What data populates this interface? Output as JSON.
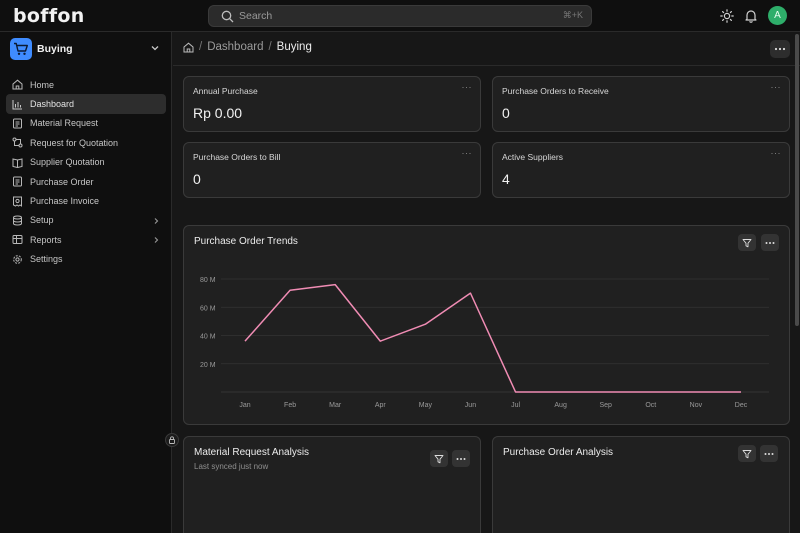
{
  "brand": {
    "logo": "boffon"
  },
  "search": {
    "placeholder": "Search",
    "shortcut": "⌘+K"
  },
  "user": {
    "avatar_letter": "A",
    "avatar_color": "#2eae6a"
  },
  "workspace": {
    "title": "Buying",
    "icon": "cart-icon",
    "accent": "#3f8cff"
  },
  "sidebar": {
    "items": [
      {
        "label": "Home",
        "icon": "home-icon"
      },
      {
        "label": "Dashboard",
        "icon": "bar-chart-icon",
        "active": true
      },
      {
        "label": "Material Request",
        "icon": "document-icon"
      },
      {
        "label": "Request for Quotation",
        "icon": "flow-icon"
      },
      {
        "label": "Supplier Quotation",
        "icon": "book-icon"
      },
      {
        "label": "Purchase Order",
        "icon": "document-icon"
      },
      {
        "label": "Purchase Invoice",
        "icon": "invoice-icon"
      },
      {
        "label": "Setup",
        "icon": "database-icon",
        "has_children": true
      },
      {
        "label": "Reports",
        "icon": "table-icon",
        "has_children": true
      },
      {
        "label": "Settings",
        "icon": "gear-icon"
      }
    ]
  },
  "breadcrumb": {
    "items": [
      "Dashboard",
      "Buying"
    ]
  },
  "cards": [
    {
      "label": "Annual Purchase",
      "value": "Rp 0.00",
      "more": "···"
    },
    {
      "label": "Purchase Orders to Receive",
      "value": "0",
      "more": "···"
    },
    {
      "label": "Purchase Orders to Bill",
      "value": "0",
      "more": "···"
    },
    {
      "label": "Active Suppliers",
      "value": "4",
      "more": "···"
    }
  ],
  "trend_chart": {
    "title": "Purchase Order Trends",
    "chart_data": {
      "type": "line",
      "title": "Purchase Order Trends",
      "categories": [
        "Jan",
        "Feb",
        "Mar",
        "Apr",
        "May",
        "Jun",
        "Jul",
        "Aug",
        "Sep",
        "Oct",
        "Nov",
        "Dec"
      ],
      "series": [
        {
          "values": [
            36,
            72,
            76,
            36,
            48,
            70,
            0,
            0,
            0,
            0,
            0,
            0
          ]
        }
      ],
      "ylim": [
        0,
        80
      ],
      "yticks": [
        20,
        40,
        60,
        80
      ],
      "ytick_labels": [
        "20 M",
        "40 M",
        "60 M",
        "80 M"
      ],
      "line_color": "#f08cb4",
      "grid": true
    }
  },
  "material_panel": {
    "title": "Material Request Analysis",
    "subtitle": "Last synced just now"
  },
  "po_panel": {
    "title": "Purchase Order Analysis"
  }
}
